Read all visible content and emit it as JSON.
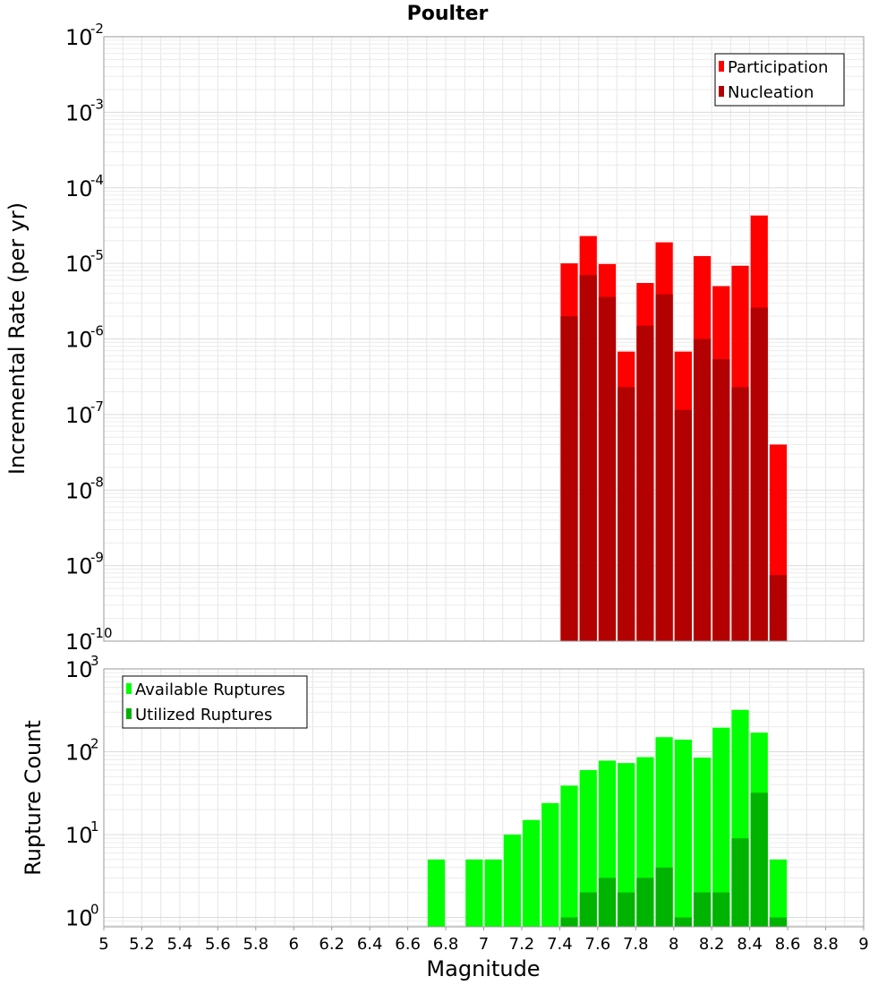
{
  "chart_data": [
    {
      "type": "bar",
      "title": "Poulter",
      "xlabel": "",
      "ylabel": "Incremental Rate (per yr)",
      "yscale": "log",
      "ylim": [
        1e-10,
        0.01
      ],
      "xlim": [
        5,
        9
      ],
      "bin_width": 0.1,
      "y_ticks": [
        {
          "base": "10",
          "exp": "-10"
        },
        {
          "base": "10",
          "exp": "-9"
        },
        {
          "base": "10",
          "exp": "-8"
        },
        {
          "base": "10",
          "exp": "-7"
        },
        {
          "base": "10",
          "exp": "-6"
        },
        {
          "base": "10",
          "exp": "-5"
        },
        {
          "base": "10",
          "exp": "-4"
        },
        {
          "base": "10",
          "exp": "-3"
        },
        {
          "base": "10",
          "exp": "-2"
        }
      ],
      "legend": [
        "Participation",
        "Nucleation"
      ],
      "legend_position": "top-right",
      "categories": [
        7.45,
        7.55,
        7.65,
        7.75,
        7.85,
        7.95,
        8.05,
        8.15,
        8.25,
        8.35,
        8.45,
        8.55
      ],
      "series": [
        {
          "name": "Participation",
          "color": "#ff0000",
          "values": [
            1e-05,
            2.3e-05,
            9.8e-06,
            6.8e-07,
            5.5e-06,
            1.9e-05,
            6.8e-07,
            1.25e-05,
            5e-06,
            9.3e-06,
            4.3e-05,
            4e-08
          ]
        },
        {
          "name": "Nucleation",
          "color": "#b30000",
          "values": [
            2e-06,
            7e-06,
            3.6e-06,
            2.3e-07,
            1.5e-06,
            3.9e-06,
            1.15e-07,
            1e-06,
            5.4e-07,
            2.3e-07,
            2.6e-06,
            7.5e-10
          ]
        }
      ]
    },
    {
      "type": "bar",
      "title": "",
      "xlabel": "Magnitude",
      "ylabel": "Rupture Count",
      "yscale": "log",
      "ylim": [
        0.77,
        1000
      ],
      "xlim": [
        5,
        9
      ],
      "bin_width": 0.1,
      "y_ticks": [
        {
          "base": "10",
          "exp": "0",
          "value": 1
        },
        {
          "base": "10",
          "exp": "1",
          "value": 10
        },
        {
          "base": "10",
          "exp": "2",
          "value": 100
        },
        {
          "base": "10",
          "exp": "3",
          "value": 1000
        }
      ],
      "x_ticks": [
        "5",
        "5.2",
        "5.4",
        "5.6",
        "5.8",
        "6",
        "6.2",
        "6.4",
        "6.6",
        "6.8",
        "7",
        "7.2",
        "7.4",
        "7.6",
        "7.8",
        "8",
        "8.2",
        "8.4",
        "8.6",
        "8.8",
        "9"
      ],
      "legend": [
        "Available Ruptures",
        "Utilized Ruptures"
      ],
      "legend_position": "top-left",
      "categories": [
        6.75,
        6.95,
        7.05,
        7.15,
        7.25,
        7.35,
        7.45,
        7.55,
        7.65,
        7.75,
        7.85,
        7.95,
        8.05,
        8.15,
        8.25,
        8.35,
        8.45,
        8.55
      ],
      "series": [
        {
          "name": "Available Ruptures",
          "color": "#00ff00",
          "values": [
            5,
            5,
            5,
            10,
            15,
            24,
            39,
            60,
            78,
            73,
            86,
            150,
            140,
            85,
            195,
            320,
            170,
            5
          ]
        },
        {
          "name": "Utilized Ruptures",
          "color": "#00b300",
          "values": [
            0,
            0,
            0,
            0,
            0,
            0,
            1,
            2,
            3,
            2,
            3,
            4,
            1,
            2,
            2,
            9,
            32,
            1
          ]
        }
      ]
    }
  ]
}
